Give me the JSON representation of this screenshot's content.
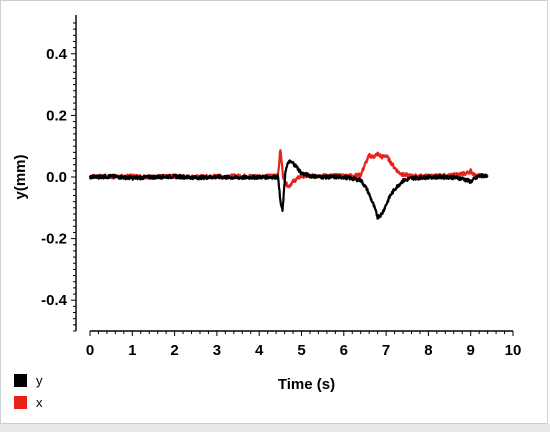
{
  "chart_data": {
    "type": "line",
    "title": "",
    "xlabel": "Time (s)",
    "ylabel": "y(mm)",
    "xlim": [
      0,
      10
    ],
    "ylim": [
      -0.5,
      0.5
    ],
    "xticks": [
      "0",
      "1",
      "2",
      "3",
      "4",
      "5",
      "6",
      "7",
      "8",
      "9",
      "10"
    ],
    "yticks": [
      "0.4",
      "0.2",
      "0.0",
      "-0.2",
      "-0.4"
    ],
    "grid": false,
    "legend_position": "bottom-left",
    "series": [
      {
        "name": "y",
        "color": "#000000",
        "x": [
          0,
          0.5,
          1,
          1.5,
          2,
          2.5,
          3,
          3.5,
          4,
          4.3,
          4.45,
          4.5,
          4.55,
          4.58,
          4.62,
          4.7,
          4.8,
          4.9,
          5.0,
          5.2,
          5.5,
          6.0,
          6.4,
          6.55,
          6.7,
          6.8,
          6.9,
          7.0,
          7.1,
          7.2,
          7.3,
          7.4,
          7.6,
          8.0,
          8.5,
          8.8,
          9.0,
          9.2,
          9.4
        ],
        "y": [
          0.0,
          0.002,
          -0.003,
          0.0,
          0.002,
          -0.002,
          0.0,
          -0.002,
          0.0,
          0.0,
          0.0,
          -0.08,
          -0.11,
          -0.06,
          0.02,
          0.05,
          0.045,
          0.03,
          0.012,
          0.004,
          0.0,
          0.0,
          -0.01,
          -0.04,
          -0.09,
          -0.13,
          -0.12,
          -0.09,
          -0.06,
          -0.04,
          -0.025,
          -0.012,
          -0.004,
          0.0,
          0.0,
          -0.005,
          -0.015,
          0.003,
          0.005
        ]
      },
      {
        "name": "x",
        "color": "#e8221b",
        "x": [
          0,
          0.5,
          1,
          1.5,
          2,
          2.5,
          3,
          3.5,
          4,
          4.3,
          4.45,
          4.5,
          4.53,
          4.57,
          4.62,
          4.7,
          4.8,
          4.9,
          5.0,
          5.2,
          5.5,
          6.0,
          6.4,
          6.5,
          6.6,
          6.7,
          6.8,
          6.9,
          7.0,
          7.1,
          7.2,
          7.3,
          7.4,
          7.6,
          8.0,
          8.5,
          8.9,
          9.0,
          9.1,
          9.4
        ],
        "y": [
          0.003,
          0.0,
          0.003,
          0.0,
          0.002,
          0.0,
          0.002,
          0.003,
          0.002,
          0.003,
          0.01,
          0.09,
          0.05,
          0.0,
          -0.02,
          -0.03,
          -0.015,
          -0.005,
          0.003,
          0.003,
          0.004,
          0.004,
          0.006,
          0.04,
          0.07,
          0.065,
          0.075,
          0.065,
          0.07,
          0.05,
          0.03,
          0.015,
          0.008,
          0.003,
          0.003,
          0.004,
          0.012,
          0.02,
          0.005,
          0.003
        ]
      }
    ]
  }
}
